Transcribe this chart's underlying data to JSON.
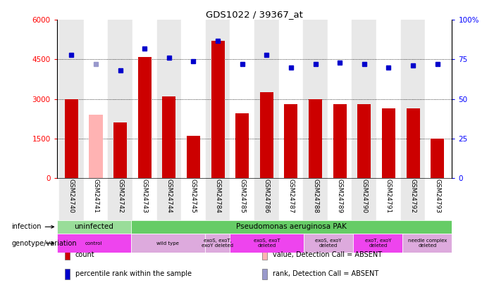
{
  "title": "GDS1022 / 39367_at",
  "samples": [
    "GSM24740",
    "GSM24741",
    "GSM24742",
    "GSM24743",
    "GSM24744",
    "GSM24745",
    "GSM24784",
    "GSM24785",
    "GSM24786",
    "GSM24787",
    "GSM24788",
    "GSM24789",
    "GSM24790",
    "GSM24791",
    "GSM24792",
    "GSM24793"
  ],
  "counts": [
    3000,
    2400,
    2100,
    4600,
    3100,
    1600,
    5200,
    2450,
    3250,
    2800,
    3000,
    2800,
    2800,
    2650,
    2650,
    1500
  ],
  "counts_absent": [
    false,
    true,
    false,
    false,
    false,
    false,
    false,
    false,
    false,
    false,
    false,
    false,
    false,
    false,
    false,
    false
  ],
  "percentile": [
    78,
    72,
    68,
    82,
    76,
    74,
    87,
    72,
    78,
    70,
    72,
    73,
    72,
    70,
    71,
    72
  ],
  "percentile_absent": [
    false,
    true,
    false,
    false,
    false,
    false,
    false,
    false,
    false,
    false,
    false,
    false,
    false,
    false,
    false,
    false
  ],
  "ylim_left": [
    0,
    6000
  ],
  "ylim_right": [
    0,
    100
  ],
  "yticks_left": [
    0,
    1500,
    3000,
    4500,
    6000
  ],
  "ytick_labels_left": [
    "0",
    "1500",
    "3000",
    "4500",
    "6000"
  ],
  "yticks_right": [
    0,
    25,
    50,
    75,
    100
  ],
  "ytick_labels_right": [
    "0",
    "25",
    "50",
    "75",
    "100%"
  ],
  "bar_color_normal": "#cc0000",
  "bar_color_absent": "#ffb3b3",
  "dot_color_normal": "#0000cc",
  "dot_color_absent": "#9999cc",
  "infection_groups": [
    {
      "label": "uninfected",
      "start": 0,
      "end": 3,
      "color": "#99dd99"
    },
    {
      "label": "Pseudomonas aeruginosa PAK",
      "start": 3,
      "end": 16,
      "color": "#66cc66"
    }
  ],
  "genotype_groups": [
    {
      "label": "control",
      "start": 0,
      "end": 3,
      "color": "#ee44ee"
    },
    {
      "label": "wild type",
      "start": 3,
      "end": 6,
      "color": "#ddaadd"
    },
    {
      "label": "exoS, exoT,\nexoY deleted",
      "start": 6,
      "end": 7,
      "color": "#ddaadd"
    },
    {
      "label": "exoS, exoT\ndeleted",
      "start": 7,
      "end": 10,
      "color": "#ee44ee"
    },
    {
      "label": "exoS, exoY\ndeleted",
      "start": 10,
      "end": 12,
      "color": "#ddaadd"
    },
    {
      "label": "exoT, exoY\ndeleted",
      "start": 12,
      "end": 14,
      "color": "#ee44ee"
    },
    {
      "label": "needle complex\ndeleted",
      "start": 14,
      "end": 16,
      "color": "#ddaadd"
    }
  ],
  "legend_items": [
    {
      "label": "count",
      "color": "#cc0000"
    },
    {
      "label": "percentile rank within the sample",
      "color": "#0000cc"
    },
    {
      "label": "value, Detection Call = ABSENT",
      "color": "#ffb3b3"
    },
    {
      "label": "rank, Detection Call = ABSENT",
      "color": "#9999cc"
    }
  ],
  "col_bg_colors": [
    "#e8e8e8",
    "#ffffff",
    "#e8e8e8",
    "#e8e8e8",
    "#ffffff",
    "#e8e8e8",
    "#e8e8e8",
    "#ffffff",
    "#e8e8e8",
    "#ffffff",
    "#e8e8e8",
    "#ffffff",
    "#e8e8e8",
    "#ffffff",
    "#e8e8e8",
    "#ffffff"
  ]
}
